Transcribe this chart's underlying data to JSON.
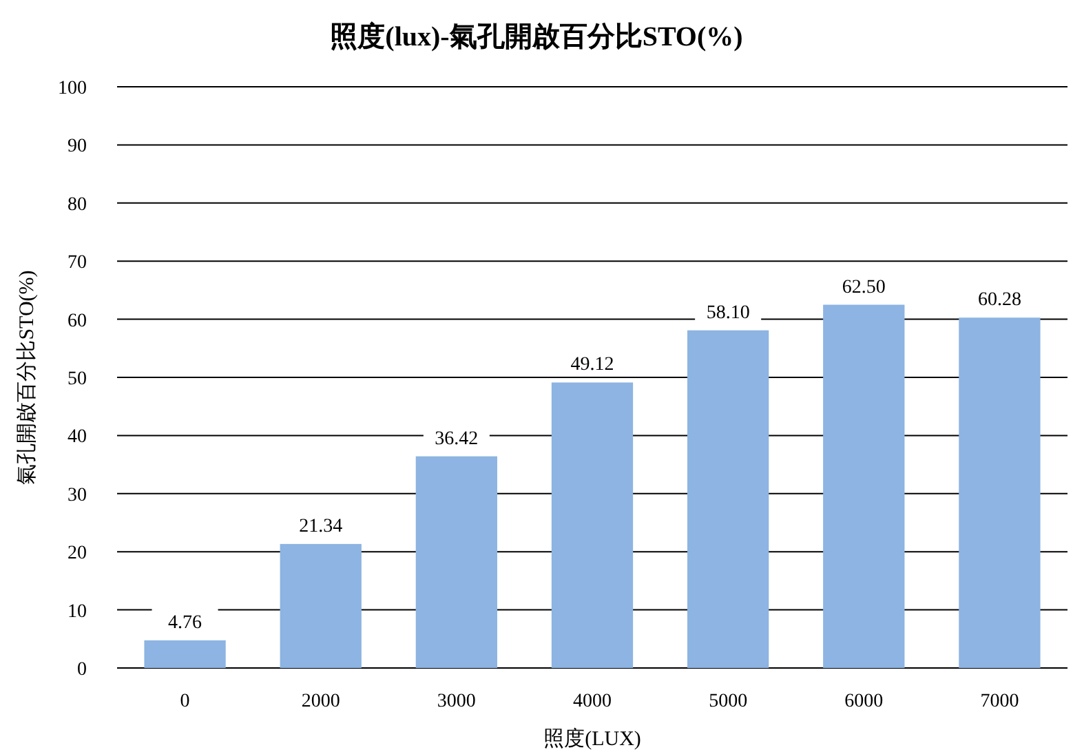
{
  "chart_data": {
    "type": "bar",
    "title": "照度(lux)-氣孔開啟百分比STO(%)",
    "xlabel": "照度(LUX)",
    "ylabel": "氣孔開啟百分比STO(%)",
    "categories": [
      "0",
      "2000",
      "3000",
      "4000",
      "5000",
      "6000",
      "7000"
    ],
    "values": [
      4.76,
      21.34,
      36.42,
      49.12,
      58.1,
      62.5,
      60.28
    ],
    "value_labels": [
      "4.76",
      "21.34",
      "36.42",
      "49.12",
      "58.10",
      "62.50",
      "60.28"
    ],
    "color": "#8db4e2",
    "ylim": [
      0,
      100
    ],
    "yticks": [
      0,
      10,
      20,
      30,
      40,
      50,
      60,
      70,
      80,
      90,
      100
    ],
    "grid": "y"
  }
}
